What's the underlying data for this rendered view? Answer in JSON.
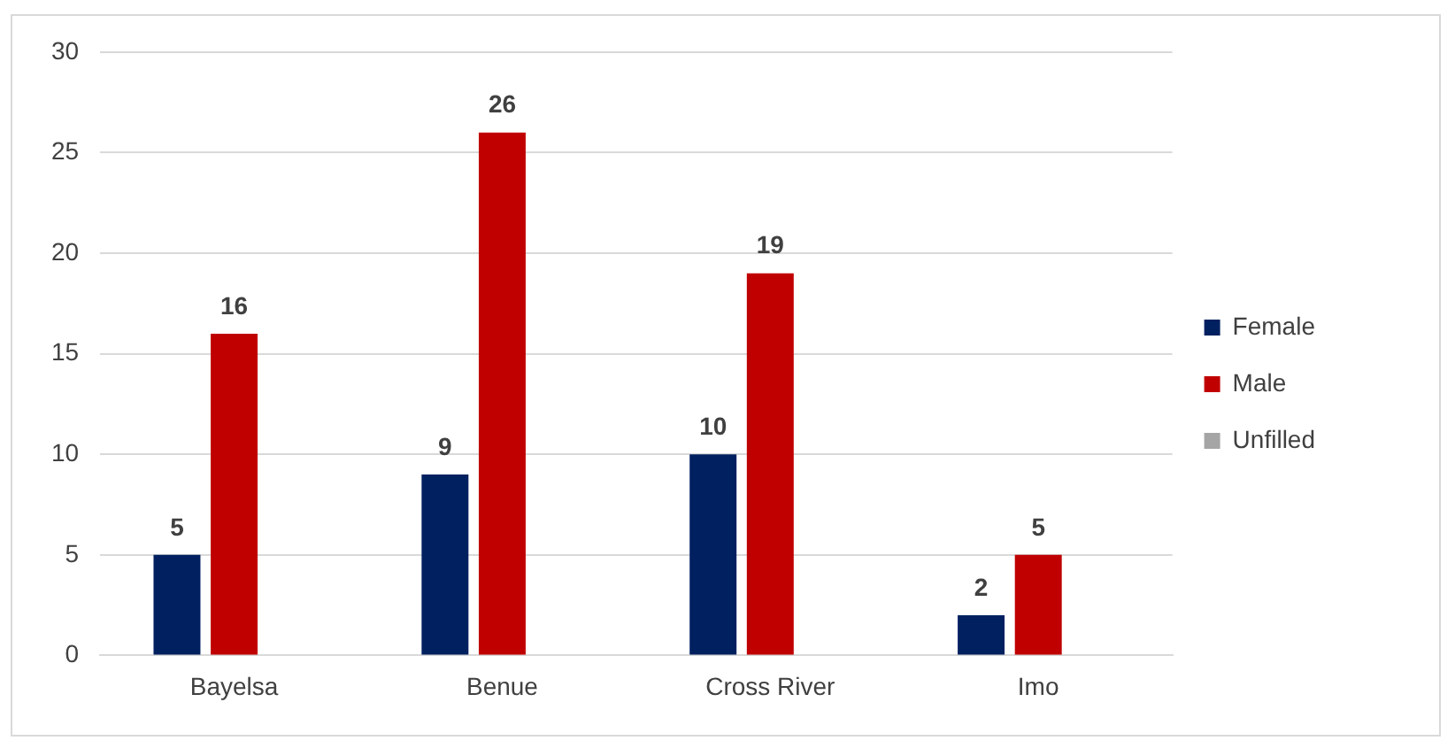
{
  "chart_data": {
    "type": "bar",
    "categories": [
      "Bayelsa",
      "Benue",
      "Cross River",
      "Imo"
    ],
    "series": [
      {
        "name": "Female",
        "color": "#002060",
        "values": [
          5,
          9,
          10,
          2
        ]
      },
      {
        "name": "Male",
        "color": "#c00000",
        "values": [
          16,
          26,
          19,
          5
        ]
      },
      {
        "name": "Unfilled",
        "color": "#a5a5a5",
        "values": [
          null,
          null,
          null,
          null
        ]
      }
    ],
    "ylim": [
      0,
      30
    ],
    "yticks": [
      0,
      5,
      10,
      15,
      20,
      25,
      30
    ],
    "grid": "y",
    "legend": "right",
    "data_labels": true
  }
}
